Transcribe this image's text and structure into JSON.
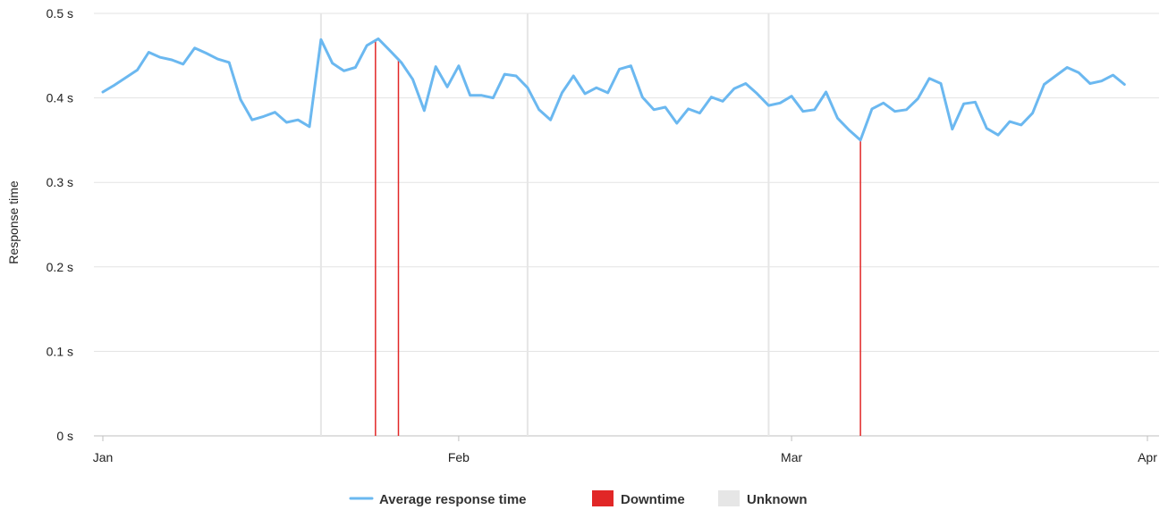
{
  "chart_data": {
    "type": "line",
    "ylabel": "Response time",
    "ylim": [
      0,
      0.5
    ],
    "y_ticks": [
      {
        "value": 0,
        "label": "0  s"
      },
      {
        "value": 0.1,
        "label": "0.1  s"
      },
      {
        "value": 0.2,
        "label": "0.2  s"
      },
      {
        "value": 0.3,
        "label": "0.3  s"
      },
      {
        "value": 0.4,
        "label": "0.4  s"
      },
      {
        "value": 0.5,
        "label": "0.5  s"
      }
    ],
    "x_ticks": [
      {
        "value": "2024-01-01",
        "label": "Jan"
      },
      {
        "value": "2024-02-01",
        "label": "Feb"
      },
      {
        "value": "2024-03-01",
        "label": "Mar"
      },
      {
        "value": "2024-04-01",
        "label": "Apr"
      }
    ],
    "xlim": [
      "2024-01-01",
      "2024-04-01"
    ],
    "grid": true,
    "legend_position": "bottom-center",
    "legend": [
      {
        "label": "Average response time",
        "kind": "line",
        "color": "#6bb8f0"
      },
      {
        "label": "Downtime",
        "kind": "box",
        "color": "#e12727"
      },
      {
        "label": "Unknown",
        "kind": "box",
        "color": "#e6e6e6"
      }
    ],
    "series": [
      {
        "name": "Average response time",
        "color": "#6bb8f0",
        "points": [
          [
            "2024-01-01 00:00",
            0.407
          ],
          [
            "2024-01-02 00:00",
            0.415
          ],
          [
            "2024-01-03 00:00",
            0.424
          ],
          [
            "2024-01-04 00:00",
            0.433
          ],
          [
            "2024-01-05 00:00",
            0.454
          ],
          [
            "2024-01-06 00:00",
            0.448
          ],
          [
            "2024-01-07 00:00",
            0.445
          ],
          [
            "2024-01-08 00:00",
            0.44
          ],
          [
            "2024-01-09 00:00",
            0.459
          ],
          [
            "2024-01-10 00:00",
            0.453
          ],
          [
            "2024-01-11 00:00",
            0.446
          ],
          [
            "2024-01-12 00:00",
            0.442
          ],
          [
            "2024-01-13 00:00",
            0.398
          ],
          [
            "2024-01-14 00:00",
            0.374
          ],
          [
            "2024-01-15 00:00",
            0.378
          ],
          [
            "2024-01-16 00:00",
            0.383
          ],
          [
            "2024-01-17 00:00",
            0.371
          ],
          [
            "2024-01-18 00:00",
            0.374
          ],
          [
            "2024-01-19 00:00",
            0.366
          ],
          [
            "2024-01-20 00:00",
            0.469
          ],
          [
            "2024-01-21 00:00",
            0.441
          ],
          [
            "2024-01-22 00:00",
            0.432
          ],
          [
            "2024-01-23 00:00",
            0.436
          ],
          [
            "2024-01-24 00:00",
            0.462
          ],
          [
            "2024-01-25 00:00",
            0.47
          ],
          [
            "2024-01-26 00:00",
            0.456
          ],
          [
            "2024-01-27 00:00",
            0.442
          ],
          [
            "2024-01-28 00:00",
            0.422
          ],
          [
            "2024-01-29 00:00",
            0.385
          ],
          [
            "2024-01-30 00:00",
            0.437
          ],
          [
            "2024-01-31 00:00",
            0.413
          ],
          [
            "2024-02-01 00:00",
            0.438
          ],
          [
            "2024-02-02 00:00",
            0.403
          ],
          [
            "2024-02-03 00:00",
            0.403
          ],
          [
            "2024-02-04 00:00",
            0.4
          ],
          [
            "2024-02-05 00:00",
            0.428
          ],
          [
            "2024-02-06 00:00",
            0.426
          ],
          [
            "2024-02-07 00:00",
            0.412
          ],
          [
            "2024-02-08 00:00",
            0.386
          ],
          [
            "2024-02-09 00:00",
            0.374
          ],
          [
            "2024-02-10 00:00",
            0.406
          ],
          [
            "2024-02-11 00:00",
            0.426
          ],
          [
            "2024-02-12 00:00",
            0.405
          ],
          [
            "2024-02-13 00:00",
            0.412
          ],
          [
            "2024-02-14 00:00",
            0.406
          ],
          [
            "2024-02-15 00:00",
            0.434
          ],
          [
            "2024-02-16 00:00",
            0.438
          ],
          [
            "2024-02-17 00:00",
            0.401
          ],
          [
            "2024-02-18 00:00",
            0.386
          ],
          [
            "2024-02-19 00:00",
            0.389
          ],
          [
            "2024-02-20 00:00",
            0.37
          ],
          [
            "2024-02-21 00:00",
            0.387
          ],
          [
            "2024-02-22 00:00",
            0.382
          ],
          [
            "2024-02-23 00:00",
            0.401
          ],
          [
            "2024-02-24 00:00",
            0.396
          ],
          [
            "2024-02-25 00:00",
            0.411
          ],
          [
            "2024-02-26 00:00",
            0.417
          ],
          [
            "2024-02-27 00:00",
            0.405
          ],
          [
            "2024-02-28 00:00",
            0.391
          ],
          [
            "2024-02-29 00:00",
            0.394
          ],
          [
            "2024-03-01 00:00",
            0.402
          ],
          [
            "2024-03-02 00:00",
            0.384
          ],
          [
            "2024-03-03 00:00",
            0.386
          ],
          [
            "2024-03-04 00:00",
            0.407
          ],
          [
            "2024-03-05 00:00",
            0.376
          ],
          [
            "2024-03-06 00:00",
            0.362
          ],
          [
            "2024-03-07 00:00",
            0.35
          ],
          [
            "2024-03-08 00:00",
            0.387
          ],
          [
            "2024-03-09 00:00",
            0.394
          ],
          [
            "2024-03-10 00:00",
            0.384
          ],
          [
            "2024-03-11 00:00",
            0.386
          ],
          [
            "2024-03-12 00:00",
            0.399
          ],
          [
            "2024-03-13 00:00",
            0.423
          ],
          [
            "2024-03-14 00:00",
            0.417
          ],
          [
            "2024-03-15 00:00",
            0.363
          ],
          [
            "2024-03-16 00:00",
            0.393
          ],
          [
            "2024-03-17 00:00",
            0.395
          ],
          [
            "2024-03-18 00:00",
            0.364
          ],
          [
            "2024-03-19 00:00",
            0.356
          ],
          [
            "2024-03-20 00:00",
            0.372
          ],
          [
            "2024-03-21 00:00",
            0.368
          ],
          [
            "2024-03-22 00:00",
            0.382
          ],
          [
            "2024-03-23 00:00",
            0.416
          ],
          [
            "2024-03-24 00:00",
            0.426
          ],
          [
            "2024-03-25 00:00",
            0.436
          ],
          [
            "2024-03-26 00:00",
            0.43
          ],
          [
            "2024-03-27 00:00",
            0.417
          ],
          [
            "2024-03-28 00:00",
            0.42
          ],
          [
            "2024-03-29 00:00",
            0.427
          ],
          [
            "2024-03-30 00:00",
            0.416
          ]
        ]
      }
    ],
    "downtime_events": [
      "2024-01-24 18:00",
      "2024-01-26 18:00",
      "2024-03-07 00:00"
    ],
    "unknown_markers": [
      "2024-01-20 00:00",
      "2024-02-07 00:00",
      "2024-02-28 00:00"
    ]
  }
}
